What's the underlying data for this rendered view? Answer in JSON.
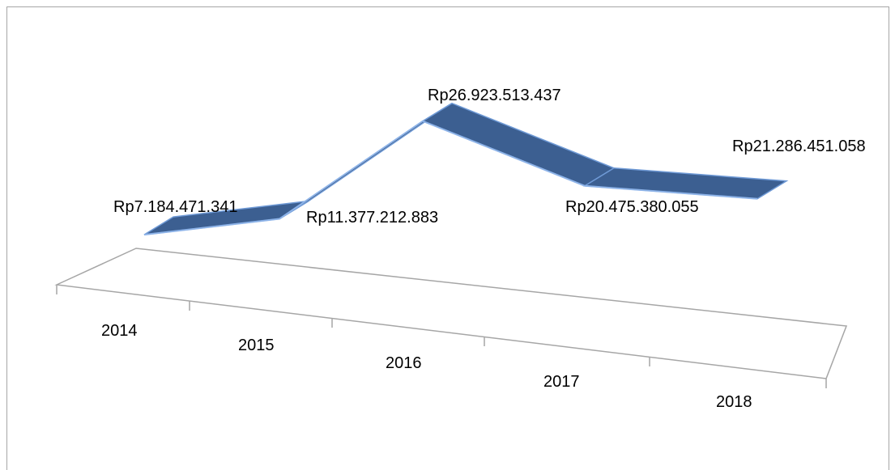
{
  "chart_data": {
    "type": "line3d",
    "categories": [
      "2014",
      "2015",
      "2016",
      "2017",
      "2018"
    ],
    "values": [
      7184471341,
      11377212883,
      26923513437,
      20475380055,
      21286451058
    ],
    "value_labels": [
      "Rp7.184.471.341",
      "Rp11.377.212.883",
      "Rp26.923.513.437",
      "Rp20.475.380.055",
      "Rp21.286.451.058"
    ],
    "color": "#3c5f91"
  }
}
